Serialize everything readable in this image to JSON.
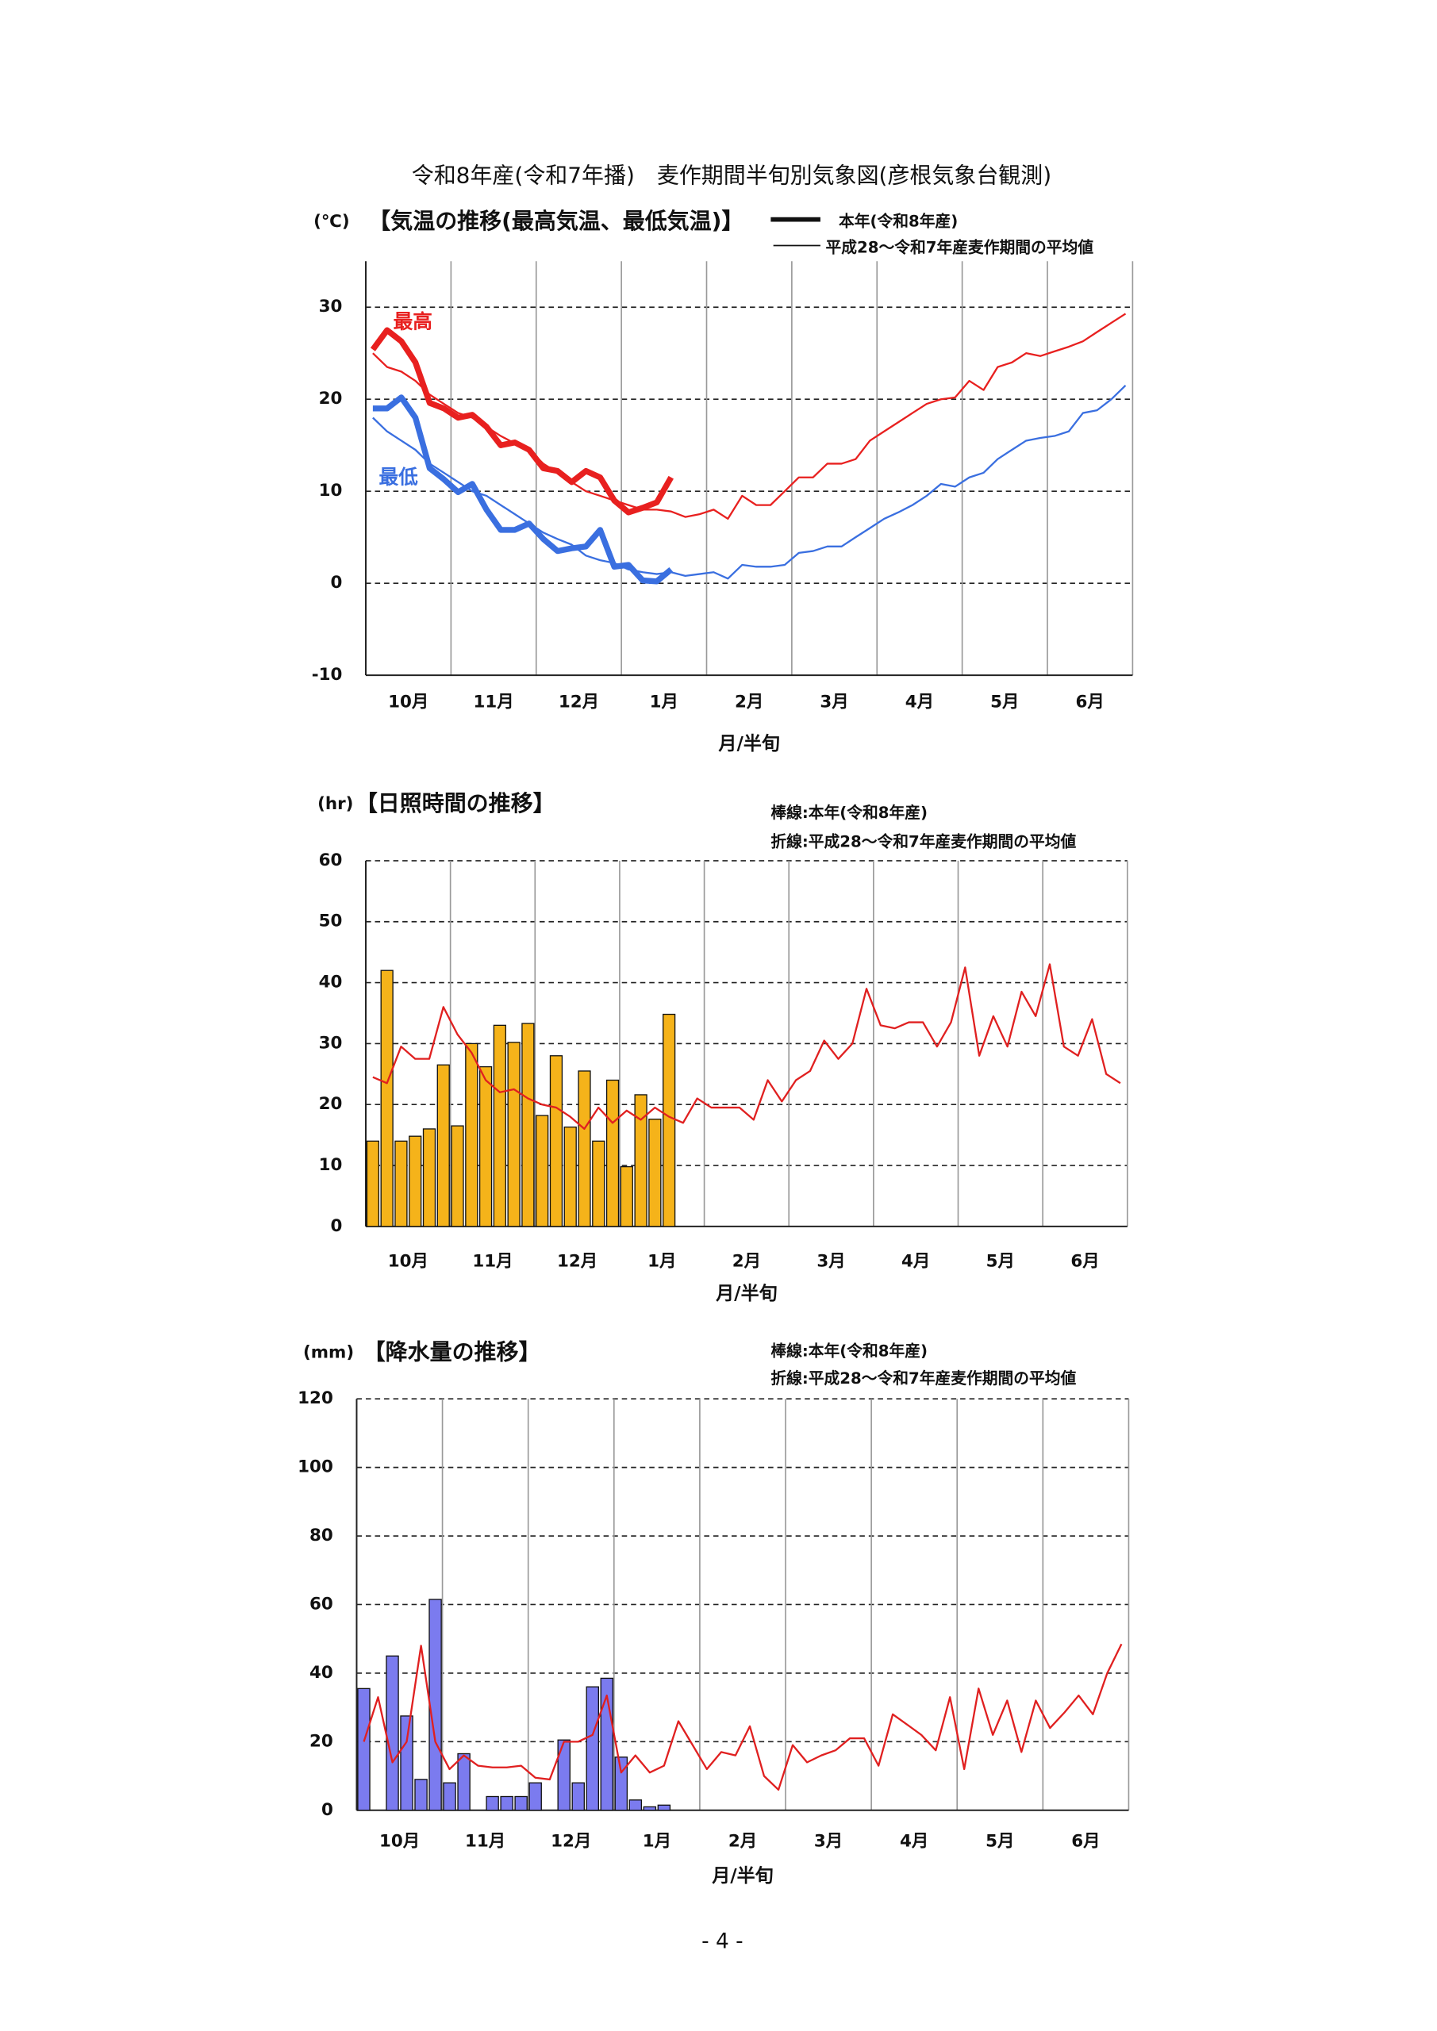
{
  "page": {
    "title": "令和8年産(令和7年播)　麦作期間半旬別気象図(彦根気象台観測)",
    "page_number": "- 4 -"
  },
  "chart_data": [
    {
      "type": "line",
      "unit": "(℃)",
      "title": "【気温の推移(最高気温、最低気温)】",
      "legend": [
        "本年(令和8年産)",
        "平成28～令和7年産麦作期間の平均値"
      ],
      "months": [
        "10月",
        "11月",
        "12月",
        "1月",
        "2月",
        "3月",
        "4月",
        "5月",
        "6月"
      ],
      "xlabel": "月/半旬",
      "ylim": [
        -10,
        35
      ],
      "yticks": [
        -10,
        0,
        10,
        20,
        30
      ],
      "grid": true,
      "series": [
        {
          "name": "最高",
          "color": "#e8201f",
          "values": [
            25.4,
            27.5,
            26.3,
            24.0,
            19.6,
            19.0,
            18.0,
            18.3,
            17.0,
            15.0,
            15.3,
            14.5,
            12.5,
            12.2,
            11.0,
            12.2,
            11.5,
            9.0,
            7.7,
            8.2,
            8.8,
            11.5
          ],
          "average": [
            25,
            23.5,
            23,
            22,
            20.5,
            19.5,
            18.5,
            18,
            17,
            16,
            15.2,
            14.5,
            13,
            12,
            11,
            10,
            9.5,
            9,
            8.5,
            8,
            8,
            7.8,
            7.2,
            7.5,
            8,
            7,
            9.5,
            8.5,
            8.5,
            10,
            11.5,
            11.5,
            13,
            13,
            13.5,
            15.5,
            16.5,
            17.5,
            18.5,
            19.5,
            20,
            20.2,
            22,
            21,
            23.5,
            24,
            25,
            24.7,
            25.2,
            25.7,
            26.3,
            27.3,
            28.3,
            29.3
          ]
        },
        {
          "name": "最低",
          "color": "#3a6fe0",
          "values": [
            19,
            19,
            20.2,
            18,
            12.5,
            11.3,
            9.9,
            10.8,
            8,
            5.8,
            5.8,
            6.5,
            4.8,
            3.5,
            3.8,
            4,
            5.8,
            1.8,
            2,
            0.3,
            0.2,
            1.5
          ],
          "average": [
            18,
            16.5,
            15.5,
            14.5,
            13,
            12,
            11,
            10,
            9.5,
            8.5,
            7.5,
            6.5,
            5.5,
            4.8,
            4.2,
            3,
            2.5,
            2.2,
            1.5,
            1.2,
            1,
            1.2,
            0.8,
            1,
            1.2,
            0.5,
            2,
            1.8,
            1.8,
            2,
            3.3,
            3.5,
            4,
            4,
            5,
            6,
            7,
            7.7,
            8.5,
            9.5,
            10.8,
            10.5,
            11.5,
            12,
            13.5,
            14.5,
            15.5,
            15.8,
            16,
            16.5,
            18.5,
            18.8,
            20,
            21.5
          ]
        }
      ]
    },
    {
      "type": "bar",
      "unit": "(hr)",
      "title": "【日照時間の推移】",
      "months": [
        "10月",
        "11月",
        "12月",
        "1月",
        "2月",
        "3月",
        "4月",
        "5月",
        "6月"
      ],
      "xlabel": "月/半旬",
      "ylim": [
        0,
        60
      ],
      "yticks": [
        0,
        10,
        20,
        30,
        40,
        50,
        60
      ],
      "grid": true,
      "series": [
        {
          "name": "棒線:本年(令和8年産)",
          "kind": "bar",
          "color": "#f5b31a",
          "values": [
            14,
            42,
            14,
            14.8,
            16,
            26.5,
            16.5,
            30,
            26.2,
            33,
            30.2,
            33.3,
            18.2,
            28,
            16.3,
            25.5,
            14,
            24,
            9.8,
            21.6,
            17.6,
            34.8
          ]
        },
        {
          "name": "折線:平成28～令和7年産麦作期間の平均値",
          "kind": "line",
          "color": "#e02020",
          "values": [
            24.5,
            23.5,
            29.5,
            27.5,
            27.5,
            36,
            31.5,
            28.5,
            24,
            22,
            22.5,
            21,
            20,
            19.5,
            18,
            16,
            19.5,
            17,
            19,
            17.5,
            19.5,
            18,
            17,
            21,
            19.5,
            19.5,
            19.5,
            17.5,
            24,
            20.5,
            24,
            25.5,
            30.5,
            27.5,
            30,
            39,
            33,
            32.5,
            33.5,
            33.5,
            29.5,
            33.5,
            42.5,
            28,
            34.5,
            29.5,
            38.5,
            34.5,
            43,
            29.5,
            28,
            34,
            25,
            23.5
          ]
        }
      ]
    },
    {
      "type": "bar",
      "unit": "(mm)",
      "title": "【降水量の推移】",
      "months": [
        "10月",
        "11月",
        "12月",
        "1月",
        "2月",
        "3月",
        "4月",
        "5月",
        "6月"
      ],
      "xlabel": "月/半旬",
      "ylim": [
        0,
        120
      ],
      "yticks": [
        0,
        20,
        40,
        60,
        80,
        100,
        120
      ],
      "grid": true,
      "series": [
        {
          "name": "棒線:本年(令和8年産)",
          "kind": "bar",
          "color": "#7b7bef",
          "values": [
            35.5,
            0,
            45,
            27.5,
            9,
            61.5,
            8,
            16.5,
            0,
            4,
            4,
            4,
            8,
            0,
            20.5,
            8,
            36,
            38.5,
            15.5,
            3,
            1,
            1.5
          ]
        },
        {
          "name": "折線:平成28～令和7年産麦作期間の平均値",
          "kind": "line",
          "color": "#e02020",
          "values": [
            20,
            33,
            14,
            20,
            48,
            20,
            12,
            16,
            13,
            12.5,
            12.5,
            13,
            9.5,
            9,
            20,
            20,
            22,
            33.5,
            11,
            16,
            11,
            13,
            26,
            19,
            12,
            17,
            16,
            24.5,
            10,
            6,
            19,
            14,
            16,
            17.5,
            21,
            21,
            13,
            28,
            25,
            22,
            17.5,
            33,
            12,
            35.5,
            22,
            32,
            17,
            32,
            24,
            28.5,
            33.5,
            28,
            40,
            48.5
          ]
        }
      ]
    }
  ]
}
